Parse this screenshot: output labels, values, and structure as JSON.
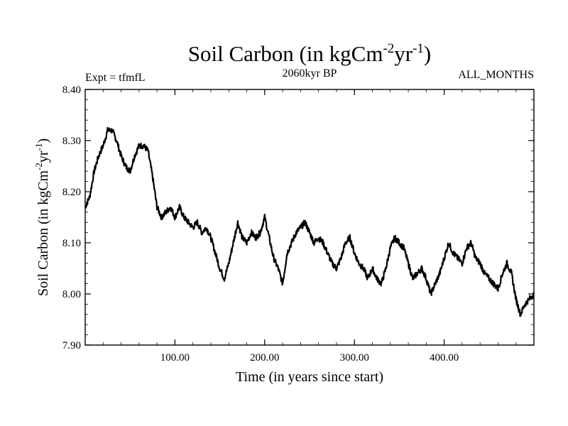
{
  "chart_data": {
    "type": "line",
    "title": {
      "base": "Soil Carbon (in kgCm",
      "sup1": "-2",
      "mid": "yr",
      "sup2": "-1",
      "end": ")"
    },
    "subtitle_left": "Expt = tfmfL",
    "subtitle_center": "2060kyr BP",
    "subtitle_right": "ALL_MONTHS",
    "xlabel": "Time (in years since start)",
    "ylabel": {
      "base": "Soil Carbon (in kgCm",
      "sup1": "-2",
      "mid": "yr",
      "sup2": "-1",
      "end": ")"
    },
    "xlim": [
      0,
      500
    ],
    "ylim": [
      7.9,
      8.4
    ],
    "x_ticks": [
      100,
      200,
      300,
      400
    ],
    "x_tick_labels": [
      "100.00",
      "200.00",
      "300.00",
      "400.00"
    ],
    "y_ticks": [
      7.9,
      8.0,
      8.1,
      8.2,
      8.3,
      8.4
    ],
    "y_tick_labels": [
      "7.90",
      "8.00",
      "8.10",
      "8.20",
      "8.30",
      "8.40"
    ],
    "series": [
      {
        "name": "Soil Carbon",
        "color": "#000000",
        "x": [
          0,
          5,
          10,
          15,
          20,
          25,
          30,
          35,
          40,
          45,
          50,
          55,
          60,
          65,
          70,
          75,
          80,
          85,
          90,
          95,
          100,
          105,
          110,
          115,
          120,
          125,
          130,
          135,
          140,
          145,
          150,
          155,
          160,
          165,
          170,
          175,
          180,
          185,
          190,
          195,
          200,
          205,
          210,
          215,
          220,
          225,
          230,
          235,
          240,
          245,
          250,
          255,
          260,
          265,
          270,
          275,
          280,
          285,
          290,
          295,
          300,
          305,
          310,
          315,
          320,
          325,
          330,
          335,
          340,
          345,
          350,
          355,
          360,
          365,
          370,
          375,
          380,
          385,
          390,
          395,
          400,
          405,
          410,
          415,
          420,
          425,
          430,
          435,
          440,
          445,
          450,
          455,
          460,
          465,
          470,
          475,
          480,
          485,
          490,
          495,
          500
        ],
        "values": [
          8.17,
          8.19,
          8.24,
          8.27,
          8.29,
          8.32,
          8.32,
          8.3,
          8.27,
          8.25,
          8.24,
          8.27,
          8.29,
          8.29,
          8.28,
          8.23,
          8.17,
          8.15,
          8.16,
          8.17,
          8.15,
          8.17,
          8.15,
          8.14,
          8.13,
          8.14,
          8.12,
          8.13,
          8.11,
          8.08,
          8.05,
          8.03,
          8.06,
          8.1,
          8.14,
          8.11,
          8.1,
          8.12,
          8.11,
          8.12,
          8.15,
          8.11,
          8.07,
          8.05,
          8.02,
          8.08,
          8.1,
          8.12,
          8.13,
          8.14,
          8.12,
          8.1,
          8.11,
          8.1,
          8.08,
          8.06,
          8.05,
          8.07,
          8.1,
          8.11,
          8.08,
          8.06,
          8.05,
          8.03,
          8.05,
          8.03,
          8.02,
          8.05,
          8.09,
          8.11,
          8.1,
          8.09,
          8.06,
          8.03,
          8.04,
          8.05,
          8.03,
          8.0,
          8.02,
          8.04,
          8.07,
          8.1,
          8.08,
          8.07,
          8.06,
          8.09,
          8.1,
          8.07,
          8.06,
          8.04,
          8.03,
          8.02,
          8.01,
          8.04,
          8.06,
          8.04,
          7.99,
          7.96,
          7.98,
          7.99,
          8.0
        ]
      }
    ]
  }
}
